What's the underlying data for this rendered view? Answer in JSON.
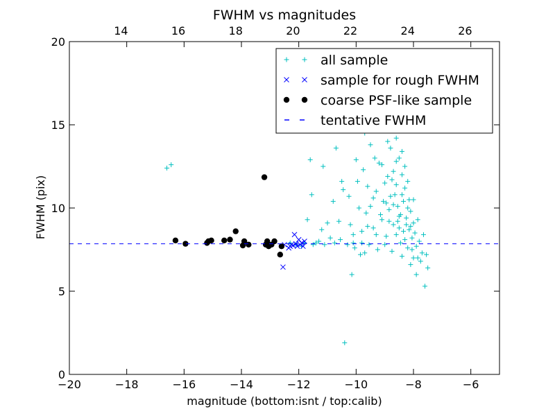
{
  "chart_data": {
    "type": "scatter",
    "title": "FWHM vs magnitudes",
    "xlabel": "magnitude (bottom:isnt / top:calib)",
    "ylabel": "FWHM (pix)",
    "xlim": [
      -20,
      -5
    ],
    "ylim": [
      0,
      20
    ],
    "x_ticks": [
      -20,
      -18,
      -16,
      -14,
      -12,
      -10,
      -8,
      -6
    ],
    "x_tick_labels": [
      "−20",
      "−18",
      "−16",
      "−14",
      "−12",
      "−10",
      "−8",
      "−6"
    ],
    "y_ticks": [
      0,
      5,
      10,
      15,
      20
    ],
    "y_tick_labels": [
      "0",
      "5",
      "10",
      "15",
      "20"
    ],
    "top_axis": {
      "offset": 32.2,
      "ticks": [
        14,
        16,
        18,
        20,
        22,
        24,
        26
      ],
      "tick_labels": [
        "14",
        "16",
        "18",
        "20",
        "22",
        "24",
        "26"
      ]
    },
    "grid": false,
    "legend_position": "top-right",
    "series": [
      {
        "name": "all sample",
        "marker": "plus",
        "color": "#00bfbf",
        "points": [
          [
            -16.6,
            12.4
          ],
          [
            -16.45,
            12.6
          ],
          [
            -12.3,
            7.9
          ],
          [
            -12.1,
            7.8
          ],
          [
            -11.9,
            7.7
          ],
          [
            -11.8,
            7.9
          ],
          [
            -11.7,
            9.3
          ],
          [
            -11.6,
            12.9
          ],
          [
            -11.55,
            10.8
          ],
          [
            -11.5,
            7.8
          ],
          [
            -11.4,
            7.9
          ],
          [
            -11.3,
            8.0
          ],
          [
            -11.2,
            8.7
          ],
          [
            -11.15,
            12.5
          ],
          [
            -11.1,
            7.8
          ],
          [
            -11.0,
            9.1
          ],
          [
            -10.9,
            8.2
          ],
          [
            -10.8,
            10.4
          ],
          [
            -10.75,
            7.9
          ],
          [
            -10.7,
            13.6
          ],
          [
            -10.6,
            9.2
          ],
          [
            -10.55,
            8.1
          ],
          [
            -10.5,
            11.6
          ],
          [
            -10.45,
            11.1
          ],
          [
            -10.4,
            1.9
          ],
          [
            -10.3,
            7.8
          ],
          [
            -10.25,
            10.7
          ],
          [
            -10.2,
            9.0
          ],
          [
            -10.15,
            6.0
          ],
          [
            -10.1,
            8.4
          ],
          [
            -10.05,
            7.6
          ],
          [
            -10.0,
            12.9
          ],
          [
            -9.95,
            11.6
          ],
          [
            -9.9,
            10.0
          ],
          [
            -9.85,
            7.2
          ],
          [
            -9.8,
            8.6
          ],
          [
            -9.75,
            12.3
          ],
          [
            -9.7,
            14.5
          ],
          [
            -9.65,
            9.7
          ],
          [
            -9.6,
            11.3
          ],
          [
            -9.55,
            7.8
          ],
          [
            -9.5,
            10.1
          ],
          [
            -9.45,
            16.0
          ],
          [
            -9.4,
            8.8
          ],
          [
            -9.35,
            13.0
          ],
          [
            -9.3,
            11.0
          ],
          [
            -9.25,
            7.5
          ],
          [
            -9.2,
            19.2
          ],
          [
            -9.15,
            9.6
          ],
          [
            -9.1,
            12.6
          ],
          [
            -9.05,
            10.4
          ],
          [
            -9.0,
            14.9
          ],
          [
            -9.0,
            7.8
          ],
          [
            -8.95,
            8.3
          ],
          [
            -8.9,
            11.9
          ],
          [
            -8.85,
            9.2
          ],
          [
            -8.8,
            13.6
          ],
          [
            -8.8,
            10.7
          ],
          [
            -8.75,
            7.4
          ],
          [
            -8.7,
            12.2
          ],
          [
            -8.7,
            9.0
          ],
          [
            -8.65,
            15.3
          ],
          [
            -8.6,
            8.4
          ],
          [
            -8.6,
            11.4
          ],
          [
            -8.55,
            10.1
          ],
          [
            -8.5,
            13.0
          ],
          [
            -8.5,
            8.8
          ],
          [
            -8.45,
            9.6
          ],
          [
            -8.4,
            7.1
          ],
          [
            -8.4,
            12.0
          ],
          [
            -8.35,
            10.4
          ],
          [
            -8.3,
            8.1
          ],
          [
            -8.3,
            11.2
          ],
          [
            -8.25,
            9.4
          ],
          [
            -8.2,
            10.0
          ],
          [
            -8.2,
            7.6
          ],
          [
            -8.15,
            8.7
          ],
          [
            -8.1,
            9.8
          ],
          [
            -8.1,
            6.6
          ],
          [
            -8.05,
            8.2
          ],
          [
            -8.0,
            9.1
          ],
          [
            -8.0,
            7.0
          ],
          [
            -7.95,
            8.5
          ],
          [
            -7.9,
            6.0
          ],
          [
            -7.9,
            7.7
          ],
          [
            -7.85,
            9.3
          ],
          [
            -7.8,
            8.0
          ],
          [
            -7.75,
            6.8
          ],
          [
            -7.7,
            7.3
          ],
          [
            -7.65,
            8.4
          ],
          [
            -7.6,
            5.3
          ],
          [
            -7.55,
            7.2
          ],
          [
            -7.5,
            6.4
          ],
          [
            -8.9,
            14.0
          ],
          [
            -9.1,
            9.3
          ],
          [
            -8.6,
            12.8
          ],
          [
            -9.3,
            8.4
          ],
          [
            -8.4,
            10.8
          ],
          [
            -9.6,
            8.9
          ],
          [
            -8.75,
            11.7
          ],
          [
            -8.95,
            10.3
          ],
          [
            -8.25,
            9.0
          ],
          [
            -8.45,
            7.9
          ],
          [
            -9.4,
            10.6
          ],
          [
            -8.55,
            9.2
          ],
          [
            -8.15,
            10.5
          ],
          [
            -9.8,
            7.9
          ],
          [
            -8.35,
            8.6
          ],
          [
            -8.05,
            7.5
          ],
          [
            -8.65,
            10.8
          ],
          [
            -9.0,
            11.5
          ],
          [
            -9.2,
            12.7
          ],
          [
            -8.85,
            9.9
          ],
          [
            -8.3,
            12.5
          ],
          [
            -8.1,
            8.9
          ],
          [
            -8.5,
            9.5
          ],
          [
            -8.7,
            10.2
          ],
          [
            -9.5,
            13.8
          ],
          [
            -9.15,
            15.1
          ],
          [
            -8.8,
            17.5
          ],
          [
            -8.9,
            18.4
          ],
          [
            -9.05,
            16.6
          ],
          [
            -8.6,
            14.2
          ],
          [
            -8.4,
            13.4
          ],
          [
            -8.2,
            11.6
          ],
          [
            -8.0,
            10.5
          ],
          [
            -7.85,
            7.0
          ],
          [
            -9.7,
            7.3
          ],
          [
            -10.1,
            7.9
          ]
        ]
      },
      {
        "name": "sample for rough FWHM",
        "marker": "x",
        "color": "#0000ff",
        "points": [
          [
            -12.55,
            6.45
          ],
          [
            -12.5,
            7.8
          ],
          [
            -12.35,
            7.6
          ],
          [
            -12.3,
            7.7
          ],
          [
            -12.25,
            7.8
          ],
          [
            -12.2,
            7.75
          ],
          [
            -12.15,
            8.4
          ],
          [
            -12.1,
            7.85
          ],
          [
            -12.05,
            7.7
          ],
          [
            -12.0,
            8.1
          ],
          [
            -11.95,
            7.8
          ],
          [
            -11.9,
            7.9
          ],
          [
            -11.85,
            7.7
          ],
          [
            -11.8,
            8.0
          ]
        ]
      },
      {
        "name": "coarse PSF-like sample",
        "marker": "circle",
        "color": "#000000",
        "points": [
          [
            -16.3,
            8.05
          ],
          [
            -15.95,
            7.85
          ],
          [
            -15.2,
            7.9
          ],
          [
            -15.15,
            8.0
          ],
          [
            -15.05,
            8.05
          ],
          [
            -14.6,
            8.05
          ],
          [
            -14.4,
            8.1
          ],
          [
            -14.2,
            8.6
          ],
          [
            -13.95,
            7.75
          ],
          [
            -13.9,
            8.0
          ],
          [
            -13.75,
            7.8
          ],
          [
            -13.2,
            11.85
          ],
          [
            -13.15,
            7.8
          ],
          [
            -13.1,
            8.0
          ],
          [
            -13.05,
            7.7
          ],
          [
            -12.95,
            7.8
          ],
          [
            -12.85,
            8.0
          ],
          [
            -12.65,
            7.2
          ],
          [
            -12.6,
            7.7
          ]
        ]
      },
      {
        "name": "tentative FWHM",
        "type": "hline",
        "style": "dashed",
        "color": "#0000ff",
        "value": 7.85
      }
    ]
  }
}
